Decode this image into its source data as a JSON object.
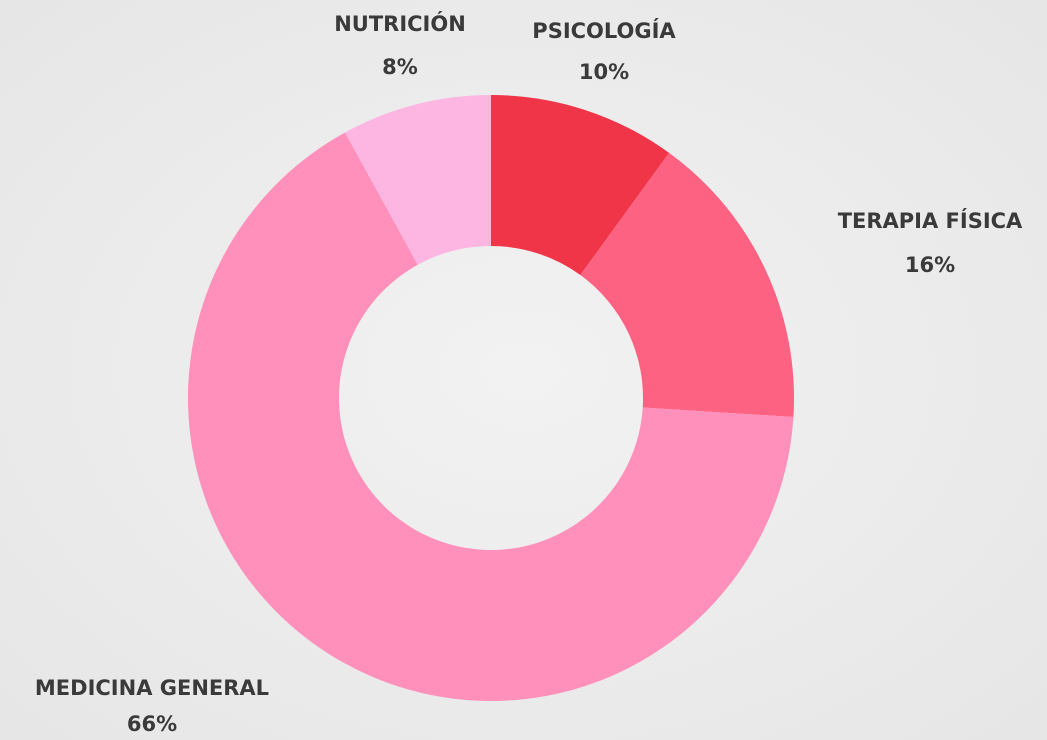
{
  "chart_data": {
    "type": "donut",
    "categories": [
      "PSICOLOGÍA",
      "TERAPIA FÍSICA",
      "MEDICINA GENERAL",
      "NUTRICIÓN"
    ],
    "values": [
      10,
      16,
      66,
      8
    ],
    "value_labels": [
      "10%",
      "16%",
      "66%",
      "8%"
    ],
    "colors": [
      "#f03549",
      "#fe6283",
      "#fe90bb",
      "#fdb6e1"
    ]
  }
}
